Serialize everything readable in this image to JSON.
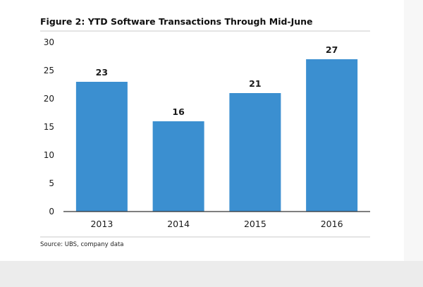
{
  "colors": {
    "bar": "#3b8fd0",
    "rule": "#c8c8c8",
    "axis": "#333333"
  },
  "chart_data": {
    "type": "bar",
    "title": "Figure 2: YTD Software Transactions Through Mid-June",
    "source": "Source: UBS, company data",
    "categories": [
      "2013",
      "2014",
      "2015",
      "2016"
    ],
    "values": [
      23,
      16,
      21,
      27
    ],
    "data_labels": [
      "23",
      "16",
      "21",
      "27"
    ],
    "yticks": [
      0,
      5,
      10,
      15,
      20,
      25,
      30
    ],
    "ylim": [
      0,
      30
    ],
    "xlabel": "",
    "ylabel": "",
    "grid": false,
    "legend": "none"
  }
}
